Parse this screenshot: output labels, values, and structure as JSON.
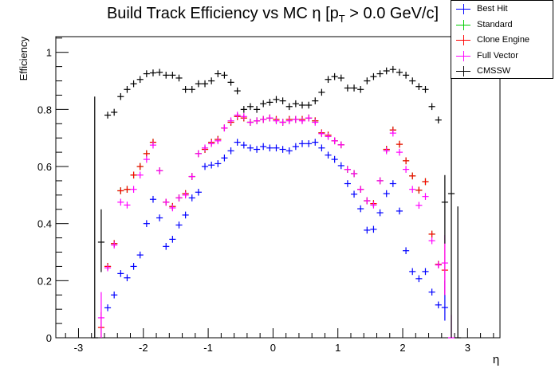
{
  "chart_data": {
    "type": "scatter",
    "title": "Build Track Efficiency vs MC η [p",
    "title_sub": "T",
    "title_tail": " > 0.0 GeV/c]",
    "xlabel": "η",
    "ylabel": "Efficiency",
    "xlim": [
      -3.35,
      3.5
    ],
    "ylim": [
      0,
      1.055
    ],
    "xticks": [
      -3,
      -2,
      -1,
      0,
      1,
      2,
      3
    ],
    "xtick_labels": [
      "-3",
      "-2",
      "-1",
      "0",
      "1",
      "2",
      "3"
    ],
    "yticks": [
      0,
      0.2,
      0.4,
      0.6,
      0.8,
      1
    ],
    "ytick_labels": [
      "0",
      "0.2",
      "0.4",
      "0.6",
      "0.8",
      "1"
    ],
    "bin_width": 0.1,
    "legend_position": "top-right",
    "x": [
      -2.55,
      -2.45,
      -2.35,
      -2.25,
      -2.15,
      -2.05,
      -1.95,
      -1.85,
      -1.75,
      -1.65,
      -1.55,
      -1.45,
      -1.35,
      -1.25,
      -1.15,
      -1.05,
      -0.95,
      -0.85,
      -0.75,
      -0.65,
      -0.55,
      -0.45,
      -0.35,
      -0.25,
      -0.15,
      -0.05,
      0.05,
      0.15,
      0.25,
      0.35,
      0.45,
      0.55,
      0.65,
      0.75,
      0.85,
      0.95,
      1.05,
      1.15,
      1.25,
      1.35,
      1.45,
      1.55,
      1.65,
      1.75,
      1.85,
      1.95,
      2.05,
      2.15,
      2.25,
      2.35,
      2.45,
      2.55
    ],
    "series": [
      {
        "name": "Best Hit",
        "color": "#0000ff",
        "values": [
          0.105,
          0.15,
          0.225,
          0.21,
          0.25,
          0.29,
          0.4,
          0.485,
          0.42,
          0.32,
          0.345,
          0.395,
          0.43,
          0.49,
          0.51,
          0.6,
          0.605,
          0.61,
          0.63,
          0.655,
          0.685,
          0.675,
          0.665,
          0.66,
          0.67,
          0.665,
          0.665,
          0.66,
          0.655,
          0.67,
          0.68,
          0.68,
          0.685,
          0.665,
          0.64,
          0.625,
          0.603,
          0.54,
          0.503,
          0.452,
          0.377,
          0.38,
          0.438,
          0.505,
          0.54,
          0.444,
          0.305,
          0.232,
          0.207,
          0.232,
          0.16,
          0.115
        ],
        "extra": [
          {
            "x": 2.65,
            "y": 0.106,
            "lo": 0.06,
            "hi": 0.2
          }
        ]
      },
      {
        "name": "Standard",
        "color": "#00cc00",
        "values": [
          0.25,
          0.33,
          0.515,
          0.52,
          0.57,
          0.6,
          0.645,
          0.685,
          0.585,
          0.475,
          0.46,
          0.49,
          0.505,
          0.565,
          0.645,
          0.66,
          0.685,
          0.695,
          0.735,
          0.755,
          0.775,
          0.77,
          0.755,
          0.76,
          0.765,
          0.77,
          0.765,
          0.755,
          0.765,
          0.765,
          0.765,
          0.77,
          0.76,
          0.718,
          0.71,
          0.69,
          0.676,
          0.59,
          0.575,
          0.52,
          0.48,
          0.47,
          0.55,
          0.66,
          0.728,
          0.678,
          0.62,
          0.567,
          0.517,
          0.547,
          0.363,
          0.257
        ],
        "extra": []
      },
      {
        "name": "Clone Engine",
        "color": "#ff0000",
        "values": [
          0.25,
          0.33,
          0.515,
          0.52,
          0.57,
          0.6,
          0.645,
          0.685,
          0.585,
          0.475,
          0.46,
          0.49,
          0.505,
          0.565,
          0.645,
          0.66,
          0.685,
          0.695,
          0.735,
          0.755,
          0.775,
          0.77,
          0.755,
          0.76,
          0.765,
          0.77,
          0.765,
          0.755,
          0.765,
          0.765,
          0.765,
          0.77,
          0.76,
          0.718,
          0.71,
          0.69,
          0.676,
          0.59,
          0.575,
          0.52,
          0.48,
          0.47,
          0.55,
          0.66,
          0.728,
          0.678,
          0.62,
          0.567,
          0.517,
          0.547,
          0.363,
          0.257
        ],
        "extra": [
          {
            "x": -2.65,
            "y": 0.036,
            "lo": 0.0,
            "hi": 0.09
          },
          {
            "x": 2.65,
            "y": 0.237,
            "lo": 0.15,
            "hi": 0.33
          }
        ]
      },
      {
        "name": "Full Vector",
        "color": "#ff00ff",
        "values": [
          0.245,
          0.325,
          0.475,
          0.465,
          0.52,
          0.57,
          0.625,
          0.675,
          0.585,
          0.475,
          0.455,
          0.49,
          0.5,
          0.565,
          0.645,
          0.665,
          0.68,
          0.69,
          0.735,
          0.76,
          0.78,
          0.775,
          0.755,
          0.76,
          0.765,
          0.77,
          0.76,
          0.755,
          0.76,
          0.765,
          0.76,
          0.77,
          0.755,
          0.715,
          0.705,
          0.69,
          0.676,
          0.59,
          0.575,
          0.52,
          0.48,
          0.465,
          0.55,
          0.655,
          0.717,
          0.65,
          0.59,
          0.52,
          0.464,
          0.495,
          0.34,
          0.255
        ],
        "extra": [
          {
            "x": -2.65,
            "y": 0.07,
            "lo": 0.0,
            "hi": 0.16
          },
          {
            "x": 2.65,
            "y": 0.262,
            "lo": 0.15,
            "hi": 0.36
          },
          {
            "x": 2.75,
            "y": 0.0,
            "lo": 0.0,
            "hi": 0.08
          }
        ]
      },
      {
        "name": "CMSSW",
        "color": "#000000",
        "values": [
          0.78,
          0.79,
          0.845,
          0.87,
          0.89,
          0.905,
          0.925,
          0.928,
          0.93,
          0.92,
          0.92,
          0.91,
          0.87,
          0.87,
          0.89,
          0.89,
          0.9,
          0.925,
          0.92,
          0.895,
          0.865,
          0.8,
          0.81,
          0.8,
          0.82,
          0.825,
          0.835,
          0.83,
          0.81,
          0.82,
          0.815,
          0.815,
          0.83,
          0.86,
          0.905,
          0.915,
          0.91,
          0.875,
          0.875,
          0.87,
          0.9,
          0.915,
          0.925,
          0.935,
          0.94,
          0.93,
          0.92,
          0.9,
          0.88,
          0.87,
          0.81,
          0.763
        ],
        "extra": [
          {
            "x": -2.75,
            "y": 0.0,
            "lo": 0.0,
            "hi": 0.845
          },
          {
            "x": -2.65,
            "y": 0.335,
            "lo": 0.23,
            "hi": 0.45
          },
          {
            "x": 2.65,
            "y": 0.475,
            "lo": 0.33,
            "hi": 0.57
          },
          {
            "x": 2.75,
            "y": 0.505,
            "lo": 0.0,
            "hi": 0.92
          },
          {
            "x": 2.85,
            "y": 0.0,
            "lo": 0.0,
            "hi": 0.46
          }
        ]
      }
    ]
  }
}
